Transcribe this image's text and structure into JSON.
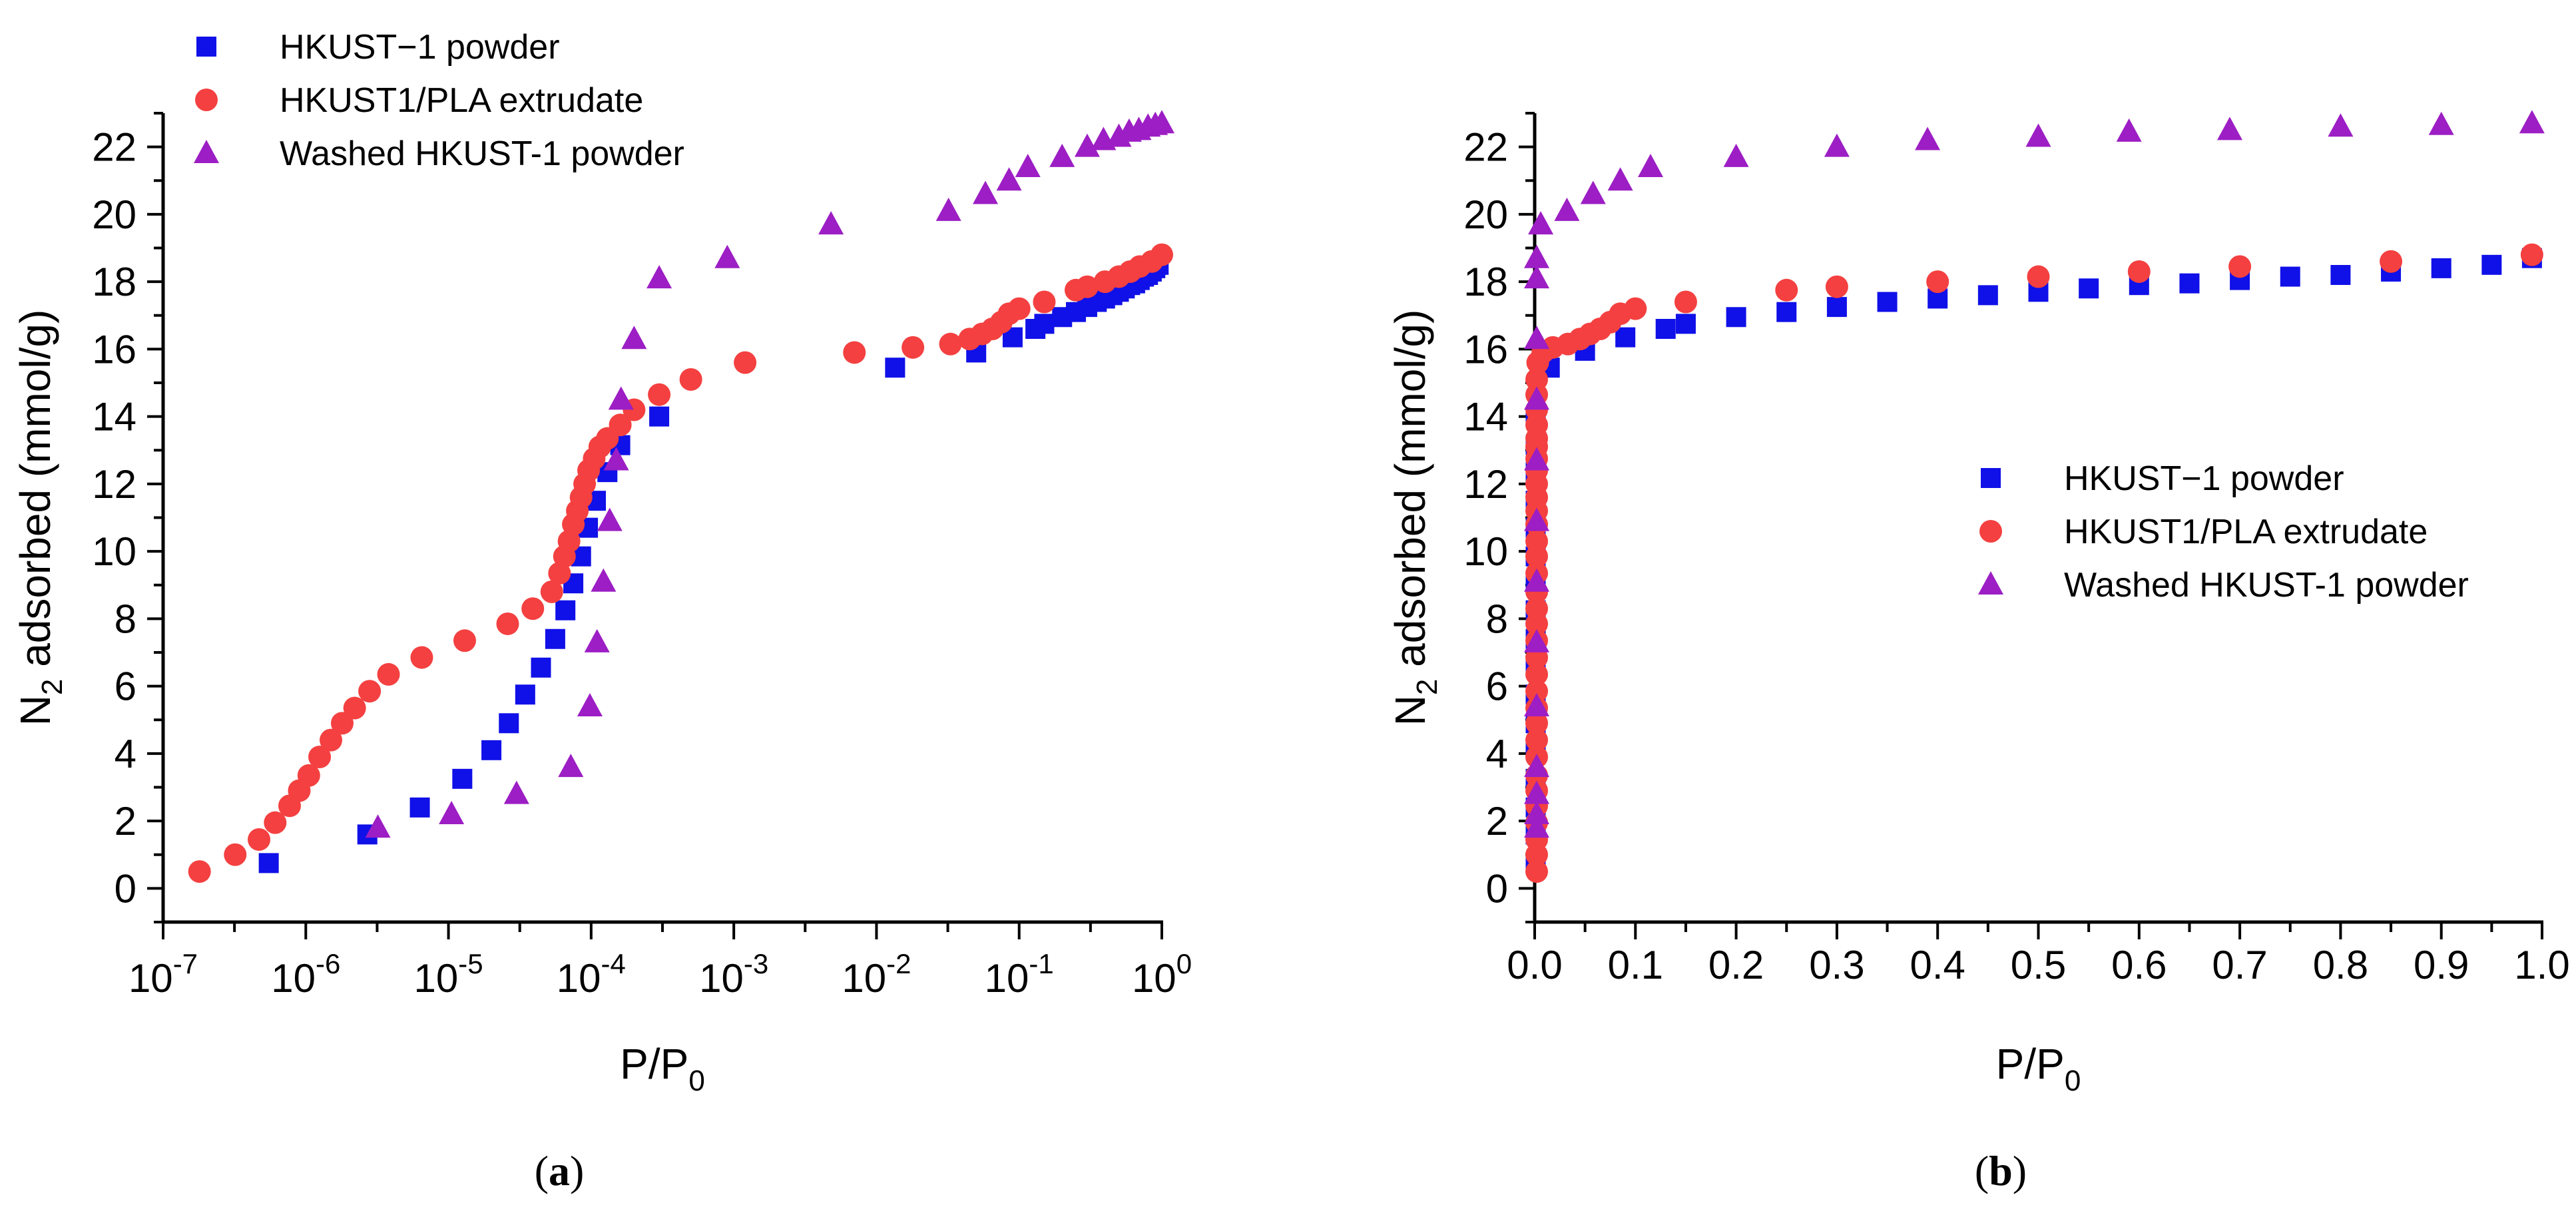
{
  "colors": {
    "square": "#1010e8",
    "circle": "#f44040",
    "triangle": "#9c1ec4",
    "axis": "#000000"
  },
  "chart_data": [
    {
      "type": "scatter",
      "panel": "a",
      "caption": {
        "open": "(",
        "letter": "a",
        "close": ")"
      },
      "xscale": "log",
      "xlim": [
        1e-07,
        1
      ],
      "ylim": [
        -1,
        23
      ],
      "xlabel": {
        "main": "P/P",
        "sub": "0"
      },
      "ylabel": {
        "main": "N",
        "sub": "2",
        "rest": " adsorbed (mmol/g)"
      },
      "xticks": [
        {
          "base": "10",
          "exp": "-7"
        },
        {
          "base": "10",
          "exp": "-6"
        },
        {
          "base": "10",
          "exp": "-5"
        },
        {
          "base": "10",
          "exp": "-4"
        },
        {
          "base": "10",
          "exp": "-3"
        },
        {
          "base": "10",
          "exp": "-2"
        },
        {
          "base": "10",
          "exp": "-1"
        },
        {
          "base": "10",
          "exp": "0"
        }
      ],
      "yticks": [
        "0",
        "2",
        "4",
        "6",
        "8",
        "10",
        "12",
        "14",
        "16",
        "18",
        "20",
        "22"
      ],
      "legend_position": "top-left",
      "series": [
        {
          "name": "HKUST−1 powder",
          "marker": "square",
          "points": [
            [
              5.5e-07,
              0.75
            ],
            [
              2.7e-06,
              1.6
            ],
            [
              6.3e-06,
              2.4
            ],
            [
              1.25e-05,
              3.25
            ],
            [
              2e-05,
              4.1
            ],
            [
              2.65e-05,
              4.9
            ],
            [
              3.45e-05,
              5.75
            ],
            [
              4.45e-05,
              6.55
            ],
            [
              5.6e-05,
              7.4
            ],
            [
              6.6e-05,
              8.25
            ],
            [
              7.5e-05,
              9.05
            ],
            [
              8.5e-05,
              9.85
            ],
            [
              9.5e-05,
              10.7
            ],
            [
              0.000108,
              11.5
            ],
            [
              0.00013,
              12.35
            ],
            [
              0.00016,
              13.15
            ],
            [
              0.0003,
              14.0
            ],
            [
              0.0135,
              15.45
            ],
            [
              0.05,
              15.9
            ],
            [
              0.09,
              16.35
            ],
            [
              0.13,
              16.6
            ],
            [
              0.15,
              16.75
            ],
            [
              0.2,
              16.95
            ],
            [
              0.25,
              17.1
            ],
            [
              0.3,
              17.25
            ],
            [
              0.35,
              17.4
            ],
            [
              0.4,
              17.5
            ],
            [
              0.45,
              17.6
            ],
            [
              0.5,
              17.7
            ],
            [
              0.55,
              17.8
            ],
            [
              0.6,
              17.9
            ],
            [
              0.65,
              17.95
            ],
            [
              0.7,
              18.05
            ],
            [
              0.75,
              18.15
            ],
            [
              0.8,
              18.2
            ],
            [
              0.85,
              18.3
            ],
            [
              0.9,
              18.4
            ],
            [
              0.95,
              18.5
            ]
          ]
        },
        {
          "name": "HKUST1/PLA extrudate",
          "marker": "circle",
          "points": [
            [
              1.8e-07,
              0.5
            ],
            [
              3.2e-07,
              1.0
            ],
            [
              4.7e-07,
              1.45
            ],
            [
              6.1e-07,
              1.95
            ],
            [
              7.7e-07,
              2.45
            ],
            [
              9e-07,
              2.9
            ],
            [
              1.05e-06,
              3.35
            ],
            [
              1.25e-06,
              3.9
            ],
            [
              1.5e-06,
              4.4
            ],
            [
              1.8e-06,
              4.9
            ],
            [
              2.2e-06,
              5.35
            ],
            [
              2.8e-06,
              5.85
            ],
            [
              3.8e-06,
              6.35
            ],
            [
              6.5e-06,
              6.85
            ],
            [
              1.3e-05,
              7.35
            ],
            [
              2.6e-05,
              7.85
            ],
            [
              3.9e-05,
              8.3
            ],
            [
              5.3e-05,
              8.8
            ],
            [
              6e-05,
              9.35
            ],
            [
              6.5e-05,
              9.85
            ],
            [
              7e-05,
              10.3
            ],
            [
              7.5e-05,
              10.8
            ],
            [
              8e-05,
              11.2
            ],
            [
              8.5e-05,
              11.6
            ],
            [
              9e-05,
              12.0
            ],
            [
              9.6e-05,
              12.4
            ],
            [
              0.000105,
              12.75
            ],
            [
              0.000115,
              13.1
            ],
            [
              0.00013,
              13.35
            ],
            [
              0.00016,
              13.75
            ],
            [
              0.0002,
              14.2
            ],
            [
              0.0003,
              14.65
            ],
            [
              0.0005,
              15.1
            ],
            [
              0.0012,
              15.6
            ],
            [
              0.007,
              15.9
            ],
            [
              0.018,
              16.05
            ],
            [
              0.033,
              16.15
            ],
            [
              0.045,
              16.3
            ],
            [
              0.055,
              16.45
            ],
            [
              0.065,
              16.6
            ],
            [
              0.075,
              16.8
            ],
            [
              0.085,
              17.05
            ],
            [
              0.1,
              17.2
            ],
            [
              0.15,
              17.4
            ],
            [
              0.25,
              17.75
            ],
            [
              0.3,
              17.85
            ],
            [
              0.4,
              18.0
            ],
            [
              0.5,
              18.15
            ],
            [
              0.6,
              18.3
            ],
            [
              0.7,
              18.45
            ],
            [
              0.85,
              18.6
            ],
            [
              1.0,
              18.8
            ]
          ]
        },
        {
          "name": "Washed HKUST-1 powder",
          "marker": "triangle",
          "points": [
            [
              3.2e-06,
              1.8
            ],
            [
              1.05e-05,
              2.2
            ],
            [
              3e-05,
              2.8
            ],
            [
              7.2e-05,
              3.6
            ],
            [
              9.8e-05,
              5.4
            ],
            [
              0.00011,
              7.3
            ],
            [
              0.000122,
              9.1
            ],
            [
              0.000135,
              10.9
            ],
            [
              0.00015,
              12.7
            ],
            [
              0.000162,
              14.5
            ],
            [
              0.0002,
              16.3
            ],
            [
              0.0003,
              18.1
            ],
            [
              0.0009,
              18.7
            ],
            [
              0.0048,
              19.7
            ],
            [
              0.032,
              20.1
            ],
            [
              0.058,
              20.6
            ],
            [
              0.085,
              21.0
            ],
            [
              0.115,
              21.4
            ],
            [
              0.2,
              21.7
            ],
            [
              0.3,
              22.0
            ],
            [
              0.39,
              22.2
            ],
            [
              0.5,
              22.3
            ],
            [
              0.59,
              22.45
            ],
            [
              0.69,
              22.5
            ],
            [
              0.8,
              22.6
            ],
            [
              0.9,
              22.65
            ],
            [
              1.0,
              22.7
            ]
          ]
        }
      ]
    },
    {
      "type": "scatter",
      "panel": "b",
      "caption": {
        "open": "(",
        "letter": "b",
        "close": ")"
      },
      "xscale": "linear",
      "xlim": [
        0,
        1
      ],
      "ylim": [
        -1,
        23
      ],
      "xlabel": {
        "main": "P/P",
        "sub": "0"
      },
      "ylabel": {
        "main": "N",
        "sub": "2",
        "rest": " adsorbed (mmol/g)"
      },
      "xticks": [
        "0.0",
        "0.1",
        "0.2",
        "0.3",
        "0.4",
        "0.5",
        "0.6",
        "0.7",
        "0.8",
        "0.9",
        "1.0"
      ],
      "yticks": [
        "0",
        "2",
        "4",
        "6",
        "8",
        "10",
        "12",
        "14",
        "16",
        "18",
        "20",
        "22"
      ],
      "legend_position": "center-right",
      "series": [
        {
          "name": "HKUST−1 powder",
          "marker": "square",
          "points": [
            [
              0.001,
              0.75
            ],
            [
              0.001,
              1.6
            ],
            [
              0.001,
              2.4
            ],
            [
              0.001,
              3.25
            ],
            [
              0.001,
              4.1
            ],
            [
              0.001,
              4.9
            ],
            [
              0.001,
              5.75
            ],
            [
              0.001,
              6.55
            ],
            [
              0.001,
              7.4
            ],
            [
              0.001,
              8.25
            ],
            [
              0.001,
              9.05
            ],
            [
              0.001,
              9.85
            ],
            [
              0.001,
              10.7
            ],
            [
              0.001,
              11.5
            ],
            [
              0.001,
              12.35
            ],
            [
              0.001,
              13.15
            ],
            [
              0.001,
              14.0
            ],
            [
              0.015,
              15.45
            ],
            [
              0.05,
              15.95
            ],
            [
              0.09,
              16.35
            ],
            [
              0.13,
              16.6
            ],
            [
              0.15,
              16.75
            ],
            [
              0.2,
              16.95
            ],
            [
              0.25,
              17.1
            ],
            [
              0.3,
              17.25
            ],
            [
              0.35,
              17.4
            ],
            [
              0.4,
              17.5
            ],
            [
              0.45,
              17.6
            ],
            [
              0.5,
              17.7
            ],
            [
              0.55,
              17.8
            ],
            [
              0.6,
              17.9
            ],
            [
              0.65,
              17.95
            ],
            [
              0.7,
              18.05
            ],
            [
              0.75,
              18.15
            ],
            [
              0.8,
              18.2
            ],
            [
              0.85,
              18.3
            ],
            [
              0.9,
              18.4
            ],
            [
              0.95,
              18.5
            ],
            [
              0.99,
              18.7
            ]
          ]
        },
        {
          "name": "HKUST1/PLA extrudate",
          "marker": "circle",
          "points": [
            [
              0.002,
              0.5
            ],
            [
              0.002,
              1.0
            ],
            [
              0.002,
              1.45
            ],
            [
              0.002,
              1.95
            ],
            [
              0.002,
              2.45
            ],
            [
              0.002,
              2.9
            ],
            [
              0.002,
              3.35
            ],
            [
              0.002,
              3.9
            ],
            [
              0.002,
              4.4
            ],
            [
              0.002,
              4.9
            ],
            [
              0.002,
              5.35
            ],
            [
              0.002,
              5.85
            ],
            [
              0.002,
              6.35
            ],
            [
              0.002,
              6.85
            ],
            [
              0.002,
              7.35
            ],
            [
              0.002,
              7.85
            ],
            [
              0.002,
              8.3
            ],
            [
              0.002,
              8.8
            ],
            [
              0.002,
              9.35
            ],
            [
              0.002,
              9.85
            ],
            [
              0.002,
              10.3
            ],
            [
              0.002,
              10.8
            ],
            [
              0.002,
              11.2
            ],
            [
              0.002,
              11.6
            ],
            [
              0.002,
              12.0
            ],
            [
              0.002,
              12.4
            ],
            [
              0.002,
              12.75
            ],
            [
              0.002,
              13.1
            ],
            [
              0.002,
              13.35
            ],
            [
              0.002,
              13.75
            ],
            [
              0.002,
              14.2
            ],
            [
              0.002,
              14.65
            ],
            [
              0.002,
              15.1
            ],
            [
              0.003,
              15.6
            ],
            [
              0.008,
              15.9
            ],
            [
              0.018,
              16.05
            ],
            [
              0.033,
              16.15
            ],
            [
              0.045,
              16.3
            ],
            [
              0.055,
              16.45
            ],
            [
              0.065,
              16.6
            ],
            [
              0.075,
              16.8
            ],
            [
              0.085,
              17.05
            ],
            [
              0.1,
              17.2
            ],
            [
              0.15,
              17.4
            ],
            [
              0.25,
              17.75
            ],
            [
              0.3,
              17.85
            ],
            [
              0.4,
              18.0
            ],
            [
              0.5,
              18.15
            ],
            [
              0.6,
              18.3
            ],
            [
              0.7,
              18.45
            ],
            [
              0.85,
              18.6
            ],
            [
              0.99,
              18.8
            ]
          ]
        },
        {
          "name": "Washed HKUST-1 powder",
          "marker": "triangle",
          "points": [
            [
              0.002,
              1.8
            ],
            [
              0.002,
              2.2
            ],
            [
              0.002,
              2.8
            ],
            [
              0.002,
              3.6
            ],
            [
              0.002,
              5.4
            ],
            [
              0.002,
              7.3
            ],
            [
              0.002,
              9.1
            ],
            [
              0.002,
              10.9
            ],
            [
              0.002,
              12.7
            ],
            [
              0.002,
              14.5
            ],
            [
              0.002,
              16.3
            ],
            [
              0.002,
              18.1
            ],
            [
              0.002,
              18.7
            ],
            [
              0.006,
              19.7
            ],
            [
              0.032,
              20.1
            ],
            [
              0.058,
              20.6
            ],
            [
              0.085,
              21.0
            ],
            [
              0.115,
              21.4
            ],
            [
              0.2,
              21.7
            ],
            [
              0.3,
              22.0
            ],
            [
              0.39,
              22.2
            ],
            [
              0.5,
              22.3
            ],
            [
              0.59,
              22.45
            ],
            [
              0.69,
              22.5
            ],
            [
              0.8,
              22.6
            ],
            [
              0.9,
              22.65
            ],
            [
              0.99,
              22.7
            ]
          ]
        }
      ]
    }
  ]
}
